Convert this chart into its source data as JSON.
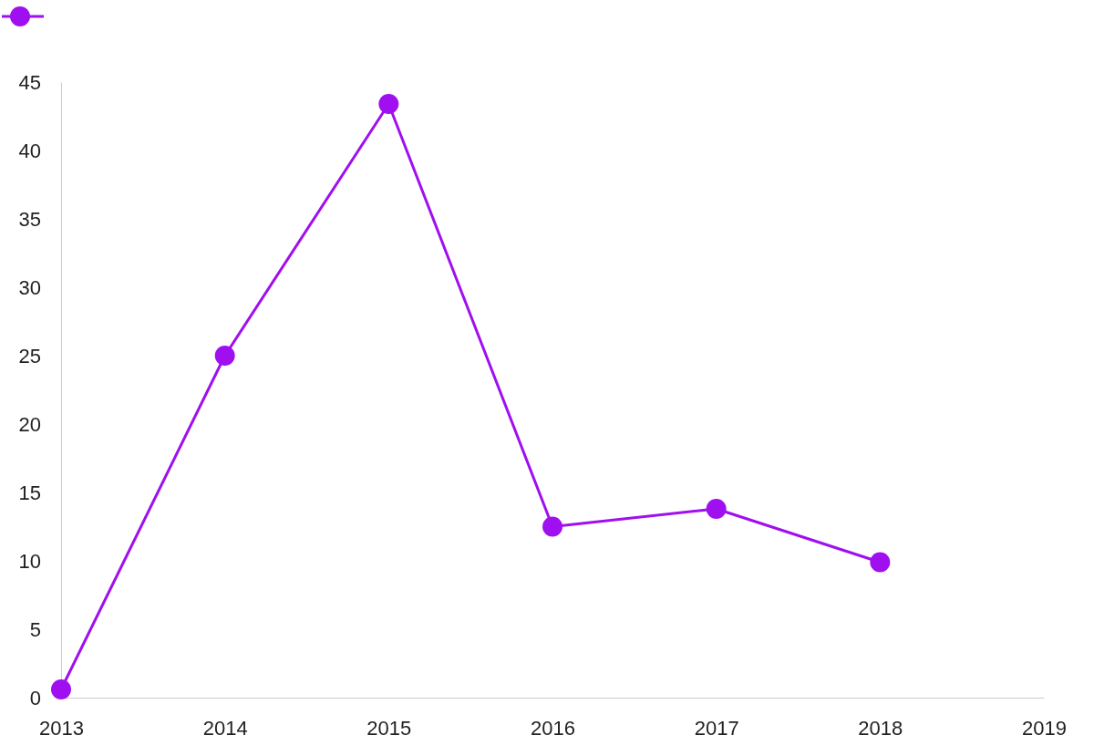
{
  "chart_data": {
    "type": "line",
    "x": [
      2013,
      2014,
      2015,
      2016,
      2017,
      2018
    ],
    "series": [
      {
        "color": "#a00ff0",
        "values": [
          0.6,
          25,
          43.4,
          12.5,
          13.8,
          9.9
        ]
      }
    ],
    "xlim": [
      2013,
      2019
    ],
    "xticks": [
      2013,
      2014,
      2015,
      2016,
      2017,
      2018,
      2019
    ],
    "ylim": [
      0,
      45
    ],
    "yticks": [
      0,
      5,
      10,
      15,
      20,
      25,
      30,
      35,
      40,
      45
    ],
    "grid": false,
    "marker": "circle",
    "line_style": "solid"
  }
}
